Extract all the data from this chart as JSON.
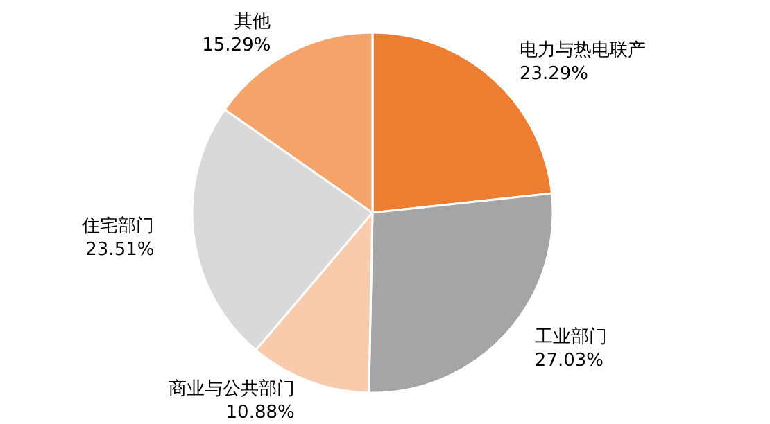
{
  "chart_data": {
    "type": "pie",
    "categories": [
      "电力与热电联产",
      "工业部门",
      "商业与公共部门",
      "住宅部门",
      "其他"
    ],
    "values": [
      23.29,
      27.03,
      10.88,
      23.51,
      15.29
    ],
    "value_labels": [
      "23.29%",
      "27.03%",
      "10.88%",
      "23.51%",
      "15.29%"
    ],
    "colors": [
      "#ed7d31",
      "#a5a5a5",
      "#f8cbad",
      "#d9d9d9",
      "#f4a46a"
    ],
    "legend": false
  }
}
